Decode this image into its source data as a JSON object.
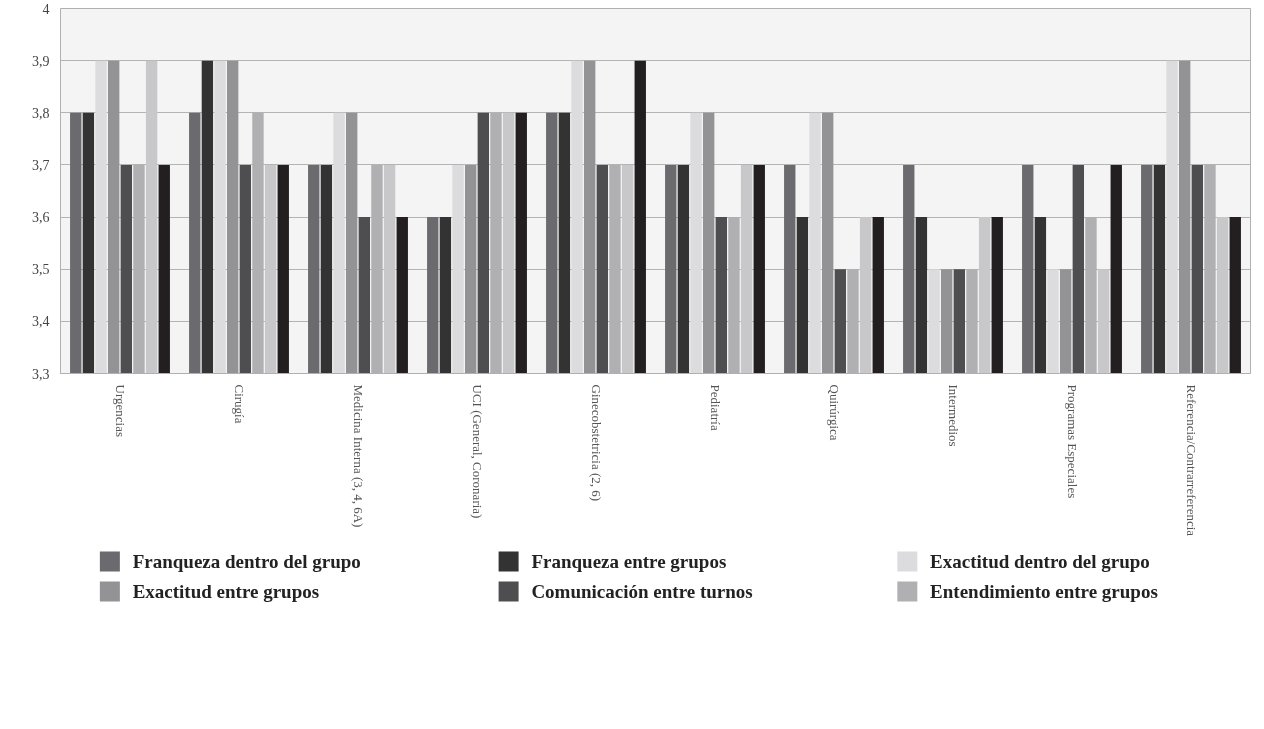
{
  "chart_data": {
    "type": "bar",
    "categories": [
      "Urgencias",
      "Cirugía",
      "Medicina Interna (3, 4, 6A)",
      "UCI (General, Coronaria)",
      "Ginecobstetricia (2, 6)",
      "Pediatría",
      "Quirúrgica",
      "Intermedios",
      "Programas Especiales",
      "Referencia/Contrarreferencia"
    ],
    "series": [
      {
        "name": "Franqueza dentro del grupo",
        "color": "#6b6b6f",
        "values": [
          3.8,
          3.8,
          3.7,
          3.6,
          3.8,
          3.7,
          3.7,
          3.7,
          3.7,
          3.7
        ]
      },
      {
        "name": "Franqueza entre grupos",
        "color": "#333333",
        "values": [
          3.8,
          3.9,
          3.7,
          3.6,
          3.8,
          3.7,
          3.6,
          3.6,
          3.6,
          3.7
        ]
      },
      {
        "name": "Exactitud dentro del grupo",
        "color": "#dcdcde",
        "values": [
          3.9,
          3.9,
          3.8,
          3.7,
          3.9,
          3.8,
          3.8,
          3.5,
          3.5,
          3.9
        ]
      },
      {
        "name": "Exactitud entre grupos",
        "color": "#939396",
        "values": [
          3.9,
          3.9,
          3.8,
          3.7,
          3.9,
          3.8,
          3.8,
          3.5,
          3.5,
          3.9
        ]
      },
      {
        "name": "Comunicación entre turnos",
        "color": "#4e4e50",
        "values": [
          3.7,
          3.7,
          3.6,
          3.8,
          3.7,
          3.6,
          3.5,
          3.5,
          3.7,
          3.7
        ]
      },
      {
        "name": "Entendimiento entre grupos",
        "color": "#b0b0b2",
        "values": [
          3.7,
          3.8,
          3.7,
          3.8,
          3.7,
          3.6,
          3.5,
          3.5,
          3.6,
          3.7
        ]
      },
      {
        "color": "#c8c8ca",
        "values": [
          3.9,
          3.7,
          3.7,
          3.8,
          3.7,
          3.7,
          3.6,
          3.6,
          3.5,
          3.6
        ]
      },
      {
        "color": "#231f20",
        "values": [
          3.7,
          3.7,
          3.6,
          3.8,
          3.9,
          3.7,
          3.6,
          3.6,
          3.7,
          3.6
        ]
      }
    ],
    "ylim": [
      3.3,
      4
    ],
    "yticks": [
      {
        "value": 3.3,
        "label": "3,3"
      },
      {
        "value": 3.4,
        "label": "3,4"
      },
      {
        "value": 3.5,
        "label": "3,5"
      },
      {
        "value": 3.6,
        "label": "3,6"
      },
      {
        "value": 3.7,
        "label": "3,7"
      },
      {
        "value": 3.8,
        "label": "3,8"
      },
      {
        "value": 3.9,
        "label": "3,9"
      },
      4
    ],
    "grid": "y",
    "legend": "bottom"
  }
}
